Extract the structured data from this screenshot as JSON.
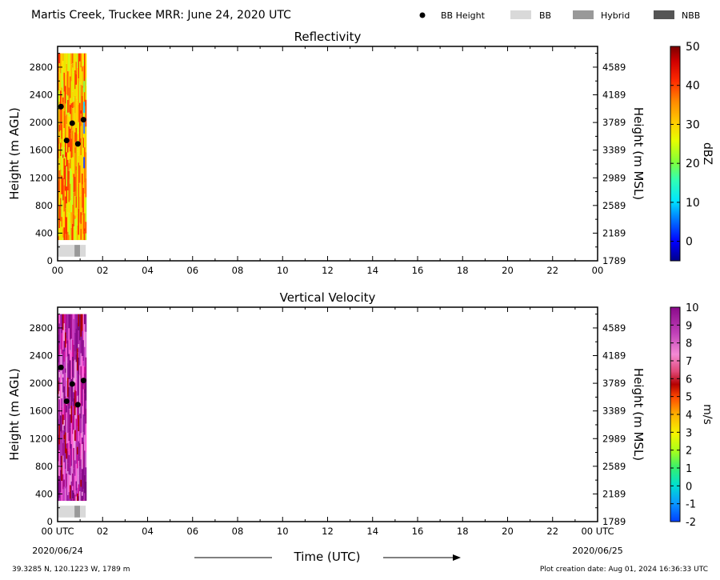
{
  "figure": {
    "title": "Martis Creek, Truckee MRR:  June 24, 2020 UTC",
    "legend": [
      {
        "label": "BB Height",
        "kind": "dot",
        "color": "#000000"
      },
      {
        "label": "BB",
        "kind": "patch",
        "color": "#d9d9d9"
      },
      {
        "label": "Hybrid",
        "kind": "patch",
        "color": "#999999"
      },
      {
        "label": "NBB",
        "kind": "patch",
        "color": "#555555"
      }
    ],
    "xlabel": "Time (UTC)",
    "start_date": "2020/06/24",
    "end_date": "2020/06/25",
    "location": "39.3285 N, 120.1223 W, 1789 m",
    "creation_note": "Plot creation date: Aug 01, 2024 16:36:33 UTC"
  },
  "chart_data": [
    {
      "type": "heatmap",
      "title": "Reflectivity",
      "ylabel": "Height (m AGL)",
      "ylabel_right": "Height (m MSL)",
      "ylim": [
        0,
        3100
      ],
      "xlim": [
        0,
        24
      ],
      "x_ticks": [
        "00",
        "02",
        "04",
        "06",
        "08",
        "10",
        "12",
        "14",
        "16",
        "18",
        "20",
        "22",
        "00"
      ],
      "y_ticks": [
        0,
        400,
        800,
        1200,
        1600,
        2000,
        2400,
        2800
      ],
      "y_ticks_right": [
        "1789",
        "2189",
        "2589",
        "2989",
        "3389",
        "3789",
        "4189",
        "4589"
      ],
      "data_extent": {
        "x": [
          0,
          1.25
        ],
        "y": [
          300,
          3000
        ]
      },
      "colorbar": {
        "label": "dBZ",
        "range": [
          -5,
          50
        ],
        "ticks": [
          "0",
          "10",
          "20",
          "30",
          "40",
          "50"
        ]
      },
      "bb_height": [
        {
          "x": 0.15,
          "y": 2230
        },
        {
          "x": 0.65,
          "y": 1990
        },
        {
          "x": 0.4,
          "y": 1740
        },
        {
          "x": 0.9,
          "y": 1690
        },
        {
          "x": 1.15,
          "y": 2040
        }
      ],
      "bb_type": [
        {
          "x_start": 0.0,
          "x_end": 0.75,
          "type": "BB"
        },
        {
          "x_start": 0.75,
          "x_end": 1.0,
          "type": "Hybrid"
        },
        {
          "x_start": 1.0,
          "x_end": 1.25,
          "type": "BB"
        }
      ]
    },
    {
      "type": "heatmap",
      "title": "Vertical Velocity",
      "ylabel": "Height (m AGL)",
      "ylabel_right": "Height (m MSL)",
      "ylim": [
        0,
        3100
      ],
      "xlim": [
        0,
        24
      ],
      "x_ticks": [
        "00 UTC",
        "02",
        "04",
        "06",
        "08",
        "10",
        "12",
        "14",
        "16",
        "18",
        "20",
        "22",
        "00 UTC"
      ],
      "y_ticks": [
        0,
        400,
        800,
        1200,
        1600,
        2000,
        2400,
        2800
      ],
      "y_ticks_right": [
        "1789",
        "2189",
        "2589",
        "2989",
        "3389",
        "3789",
        "4189",
        "4589"
      ],
      "data_extent": {
        "x": [
          0,
          1.25
        ],
        "y": [
          300,
          3000
        ]
      },
      "colorbar": {
        "label": "m/s",
        "range": [
          -2,
          10
        ],
        "ticks": [
          "-2",
          "-1",
          "0",
          "1",
          "2",
          "3",
          "4",
          "5",
          "6",
          "7",
          "8",
          "9",
          "10"
        ]
      },
      "bb_height": [
        {
          "x": 0.15,
          "y": 2230
        },
        {
          "x": 0.65,
          "y": 1990
        },
        {
          "x": 0.4,
          "y": 1740
        },
        {
          "x": 0.9,
          "y": 1690
        },
        {
          "x": 1.15,
          "y": 2040
        }
      ],
      "bb_type": [
        {
          "x_start": 0.0,
          "x_end": 0.75,
          "type": "BB"
        },
        {
          "x_start": 0.75,
          "x_end": 1.0,
          "type": "Hybrid"
        },
        {
          "x_start": 1.0,
          "x_end": 1.25,
          "type": "BB"
        }
      ]
    }
  ]
}
